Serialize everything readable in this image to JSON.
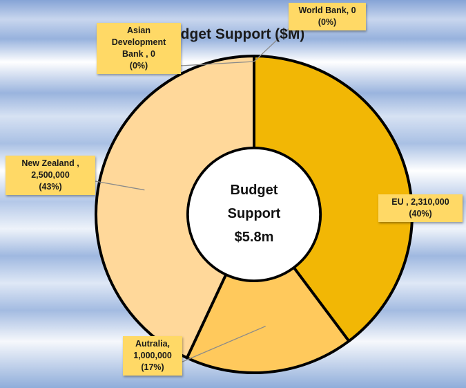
{
  "chart_data": {
    "type": "pie",
    "title": "Budget Support ($M)",
    "center_label": [
      "Budget",
      "Support",
      "$5.8m"
    ],
    "categories": [
      "World Bank",
      "EU",
      "Autralia",
      "New Zealand",
      "Asian Development Bank"
    ],
    "values": [
      0,
      2310000,
      1000000,
      2500000,
      0
    ],
    "percents": [
      0,
      40,
      17,
      43,
      0
    ],
    "colors": [
      "#f2b705",
      "#f2b705",
      "#ffc95c",
      "#ffd89a",
      "#ffd89a"
    ],
    "labels": [
      [
        "World Bank, 0",
        "(0%)"
      ],
      [
        "EU , 2,310,000",
        "(40%)"
      ],
      [
        "Autralia,",
        "1,000,000",
        "(17%)"
      ],
      [
        "New Zealand ,",
        "2,500,000",
        "(43%)"
      ],
      [
        "Asian",
        "Development",
        "Bank , 0",
        "(0%)"
      ]
    ],
    "legend": "none",
    "grid": false
  }
}
